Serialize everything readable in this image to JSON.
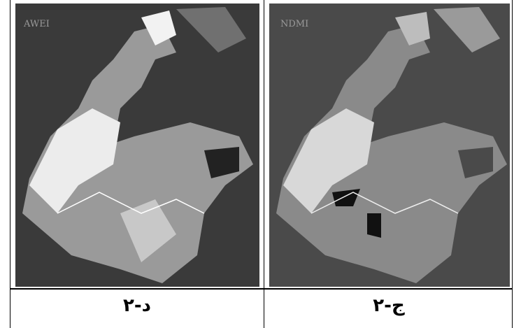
{
  "panels": [
    {
      "label": "AWEI",
      "caption": "۲-د"
    },
    {
      "label": "NDMI",
      "caption": "۲-ج"
    }
  ]
}
